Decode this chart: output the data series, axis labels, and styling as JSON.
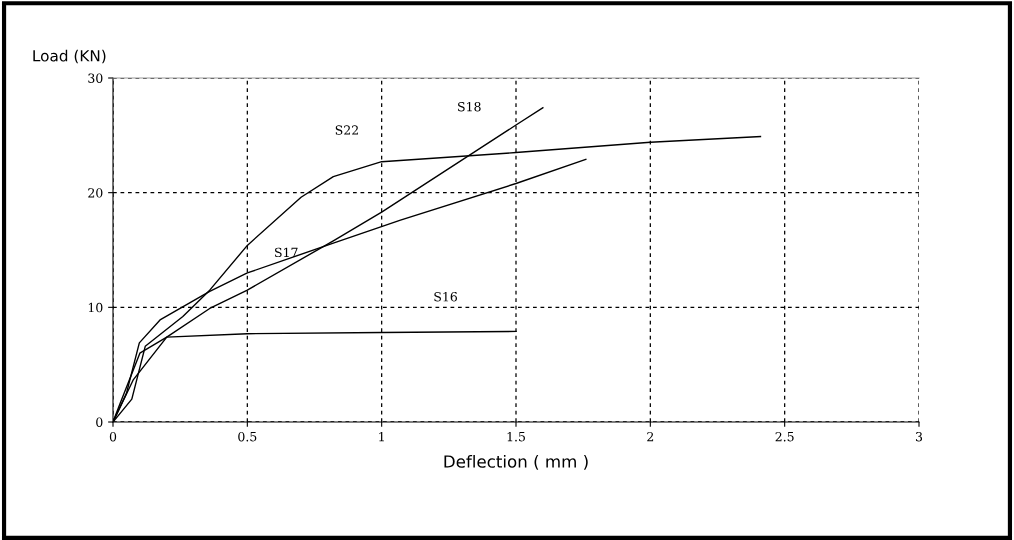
{
  "chart_data": {
    "type": "line",
    "xlabel": "Deflection ( mm )",
    "ylabel": "Load (KN)",
    "xlim": [
      0,
      3
    ],
    "ylim": [
      0,
      30
    ],
    "xticks": [
      0,
      0.5,
      1,
      1.5,
      2,
      2.5,
      3
    ],
    "yticks": [
      0,
      10,
      20,
      30
    ],
    "grid": true,
    "line_style": "solid",
    "marker": "none",
    "series": [
      {
        "name": "S16",
        "color": "#000000",
        "x": [
          0,
          0.026,
          0.1,
          0.2,
          0.5,
          1.0,
          1.5
        ],
        "values": [
          0,
          1.6,
          6.0,
          7.4,
          7.7,
          7.8,
          7.9
        ]
      },
      {
        "name": "S17",
        "color": "#000000",
        "x": [
          0,
          0.05,
          0.098,
          0.175,
          0.36,
          0.5,
          0.82,
          1.07,
          1.5,
          1.76
        ],
        "values": [
          0,
          2.5,
          6.9,
          8.9,
          11.4,
          13.0,
          15.6,
          17.6,
          20.8,
          22.9
        ]
      },
      {
        "name": "S18",
        "color": "#000000",
        "x": [
          0,
          0.076,
          0.2,
          0.36,
          0.5,
          0.82,
          1.0,
          1.5,
          1.6
        ],
        "values": [
          0,
          3.7,
          7.4,
          9.9,
          11.5,
          15.8,
          18.3,
          25.9,
          27.4
        ]
      },
      {
        "name": "S22",
        "color": "#000000",
        "x": [
          0,
          0.07,
          0.12,
          0.26,
          0.36,
          0.5,
          0.7,
          0.82,
          1.0,
          1.5,
          2.0,
          2.41
        ],
        "values": [
          0,
          2,
          6.6,
          9.2,
          11.5,
          15.4,
          19.6,
          21.4,
          22.7,
          23.5,
          24.4,
          24.9
        ]
      }
    ]
  }
}
